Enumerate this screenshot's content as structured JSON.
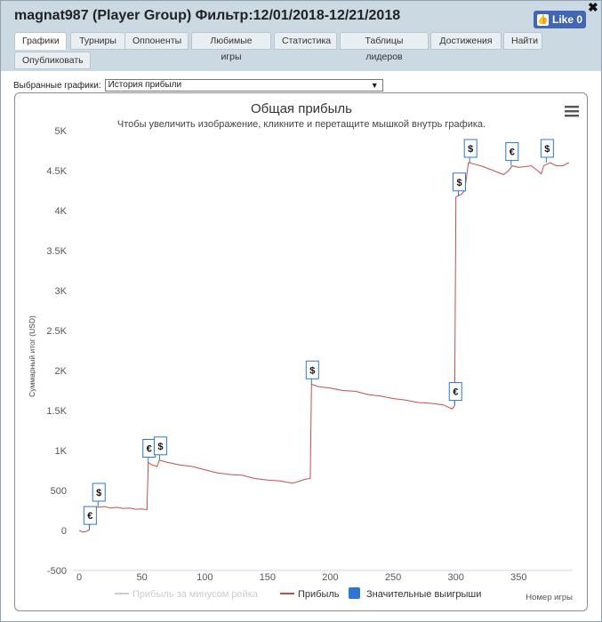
{
  "window": {
    "title": "magnat987 (Player Group) Фильтр:12/01/2018-12/21/2018",
    "fb_like_label": "Like 0",
    "close_label": "✖"
  },
  "tabs": [
    {
      "label": "Графики",
      "active": true
    },
    {
      "label": "Турниры"
    },
    {
      "label": "Оппоненты"
    },
    {
      "label": "Любимые игры"
    },
    {
      "label": "Статистика"
    },
    {
      "label": "Таблицы лидеров"
    },
    {
      "label": "Достижения"
    },
    {
      "label": "Найти"
    },
    {
      "label": "Опубликовать"
    }
  ],
  "selector": {
    "label": "Выбранные графики:",
    "value": "История прибыли"
  },
  "chart_data": {
    "type": "line",
    "title": "Общая прибыль",
    "subtitle": "Чтобы увеличить изображение, кликните и перетащите мышкой внутрь графика.",
    "ylabel": "Суммарный итог (USD)",
    "xlabel": "Номер игры",
    "xlim": [
      -5,
      393
    ],
    "ylim": [
      -500,
      5000
    ],
    "x_ticks": [
      0,
      50,
      100,
      150,
      200,
      250,
      300,
      350
    ],
    "y_ticks": [
      -500,
      0,
      500,
      1000,
      1500,
      2000,
      2500,
      3000,
      3500,
      4000,
      4500,
      5000
    ],
    "y_tick_labels": [
      "-500",
      "0",
      "500",
      "1K",
      "1.5K",
      "2K",
      "2.5K",
      "3K",
      "3.5K",
      "4K",
      "4.5K",
      "5K"
    ],
    "series": [
      {
        "name": "Прибыль за минусом рейка",
        "color": "#cccccc",
        "visible": false,
        "points": []
      },
      {
        "name": "Прибыль",
        "color": "#c0504d",
        "points": [
          [
            0,
            0
          ],
          [
            3,
            -20
          ],
          [
            6,
            -10
          ],
          [
            8,
            10
          ],
          [
            9,
            280
          ],
          [
            12,
            300
          ],
          [
            15,
            290
          ],
          [
            20,
            300
          ],
          [
            25,
            280
          ],
          [
            30,
            290
          ],
          [
            35,
            275
          ],
          [
            40,
            280
          ],
          [
            45,
            265
          ],
          [
            50,
            270
          ],
          [
            54,
            260
          ],
          [
            55,
            850
          ],
          [
            58,
            820
          ],
          [
            62,
            800
          ],
          [
            64,
            880
          ],
          [
            68,
            860
          ],
          [
            80,
            820
          ],
          [
            90,
            800
          ],
          [
            100,
            760
          ],
          [
            110,
            720
          ],
          [
            120,
            700
          ],
          [
            130,
            690
          ],
          [
            140,
            650
          ],
          [
            150,
            630
          ],
          [
            160,
            620
          ],
          [
            170,
            590
          ],
          [
            180,
            640
          ],
          [
            184,
            650
          ],
          [
            185,
            1830
          ],
          [
            190,
            1800
          ],
          [
            200,
            1780
          ],
          [
            210,
            1750
          ],
          [
            220,
            1740
          ],
          [
            230,
            1700
          ],
          [
            240,
            1680
          ],
          [
            250,
            1650
          ],
          [
            260,
            1630
          ],
          [
            270,
            1600
          ],
          [
            280,
            1590
          ],
          [
            290,
            1570
          ],
          [
            297,
            1520
          ],
          [
            299,
            1560
          ],
          [
            300,
            4170
          ],
          [
            304,
            4200
          ],
          [
            307,
            4250
          ],
          [
            310,
            4600
          ],
          [
            315,
            4580
          ],
          [
            320,
            4560
          ],
          [
            330,
            4500
          ],
          [
            338,
            4450
          ],
          [
            342,
            4500
          ],
          [
            345,
            4560
          ],
          [
            350,
            4540
          ],
          [
            360,
            4560
          ],
          [
            365,
            4500
          ],
          [
            368,
            4460
          ],
          [
            370,
            4560
          ],
          [
            375,
            4600
          ],
          [
            380,
            4560
          ],
          [
            385,
            4560
          ],
          [
            390,
            4600
          ]
        ]
      },
      {
        "name": "Значительные выигрыши",
        "color": "#2e75d6",
        "marker": "flag"
      }
    ],
    "flags": [
      {
        "x": 8,
        "y": 10,
        "label": "€"
      },
      {
        "x": 15,
        "y": 300,
        "label": "$"
      },
      {
        "x": 55,
        "y": 850,
        "label": "€"
      },
      {
        "x": 64,
        "y": 880,
        "label": "$"
      },
      {
        "x": 185,
        "y": 1830,
        "label": "$"
      },
      {
        "x": 299,
        "y": 1560,
        "label": "€"
      },
      {
        "x": 302,
        "y": 4180,
        "label": "$"
      },
      {
        "x": 311,
        "y": 4600,
        "label": "$"
      },
      {
        "x": 344,
        "y": 4560,
        "label": "€"
      },
      {
        "x": 372,
        "y": 4600,
        "label": "$"
      }
    ],
    "legend_position": "bottom-center",
    "grid": false
  }
}
